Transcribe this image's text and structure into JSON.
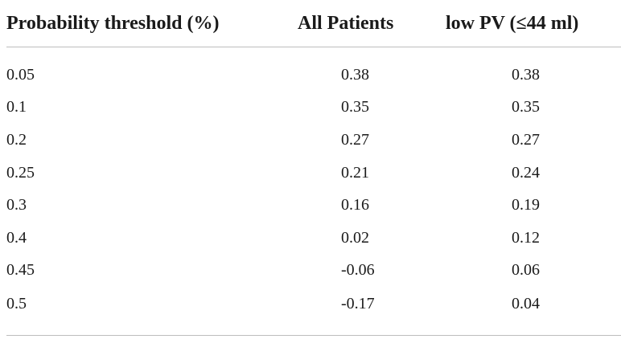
{
  "table": {
    "headers": [
      "Probability threshold (%)",
      "All Patients",
      "low PV (≤44 ml)"
    ],
    "rows": [
      [
        "0.05",
        "0.38",
        "0.38"
      ],
      [
        "0.1",
        "0.35",
        "0.35"
      ],
      [
        "0.2",
        "0.27",
        "0.27"
      ],
      [
        "0.25",
        "0.21",
        "0.24"
      ],
      [
        "0.3",
        "0.16",
        "0.19"
      ],
      [
        "0.4",
        "0.02",
        "0.12"
      ],
      [
        "0.45",
        "-0.06",
        "0.06"
      ],
      [
        "0.5",
        "-0.17",
        "0.04"
      ]
    ]
  }
}
